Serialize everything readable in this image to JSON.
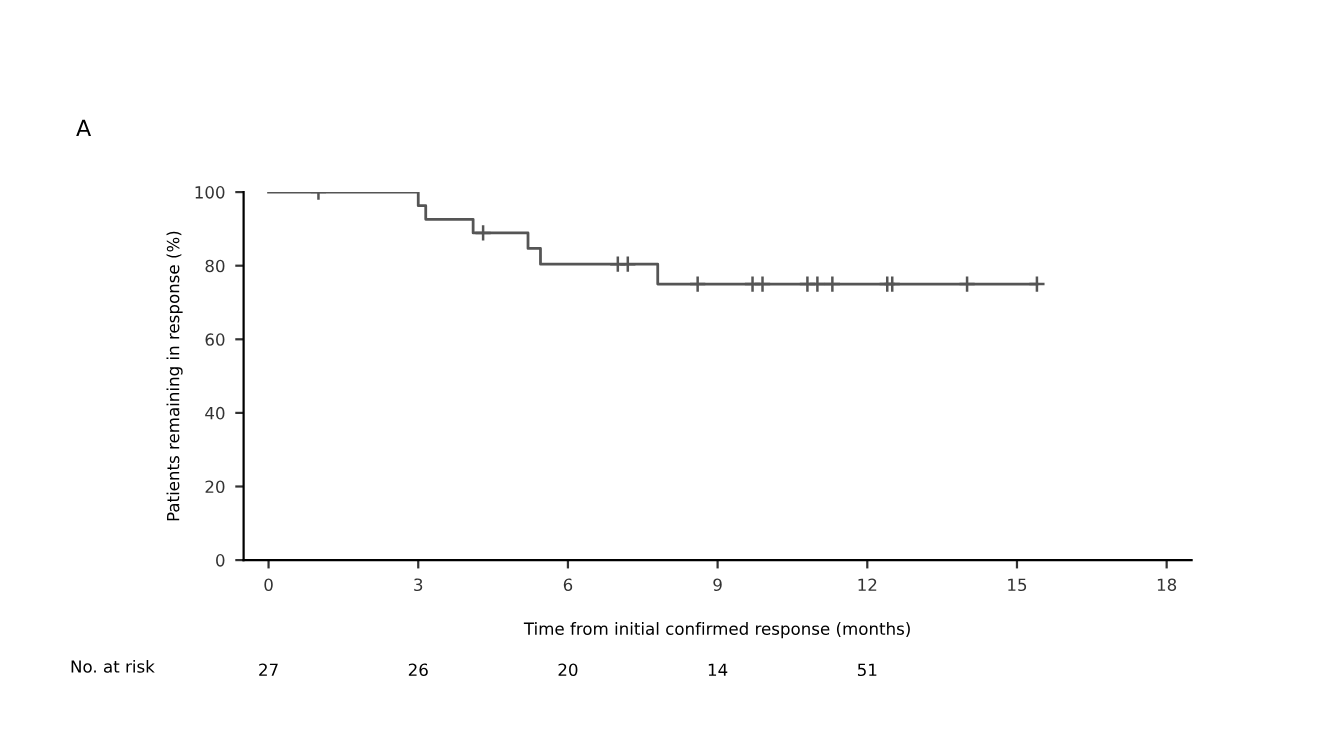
{
  "chart_data": {
    "type": "step",
    "title": "A",
    "xlabel": "Time from initial confirmed response (months)",
    "ylabel": "Patients remaining in response (%)",
    "series": [
      {
        "color": "#555555",
        "marker": "none",
        "x": [
          0,
          3.0,
          3.15,
          4.1,
          5.2,
          5.45,
          7.8,
          15.4
        ],
        "values": [
          100,
          96.3,
          92.6,
          88.9,
          84.7,
          80.4,
          75.0,
          75.0
        ]
      },
      {
        "type": "scatter",
        "color": "#555555",
        "marker": "cross",
        "x": [
          1.0,
          4.3,
          7.0,
          7.2,
          8.6,
          9.7,
          9.9,
          10.8,
          11.0,
          11.3,
          12.4,
          12.5,
          14.0,
          15.4
        ],
        "values": [
          100,
          88.9,
          80.4,
          80.4,
          75.0,
          75.0,
          75.0,
          75.0,
          75.0,
          75.0,
          75.0,
          75.0,
          75.0,
          75.0
        ]
      }
    ],
    "xlim": [
      -0.5,
      18.5
    ],
    "xticks": [
      0,
      3,
      6,
      9,
      12,
      15,
      18
    ],
    "ylim": [
      0,
      100
    ],
    "yticks": [
      0,
      20,
      40,
      60,
      80,
      100
    ],
    "grid": false,
    "legend": false,
    "annotations": [
      "No. at risk",
      "27",
      "26",
      "20",
      "14",
      "51"
    ]
  }
}
